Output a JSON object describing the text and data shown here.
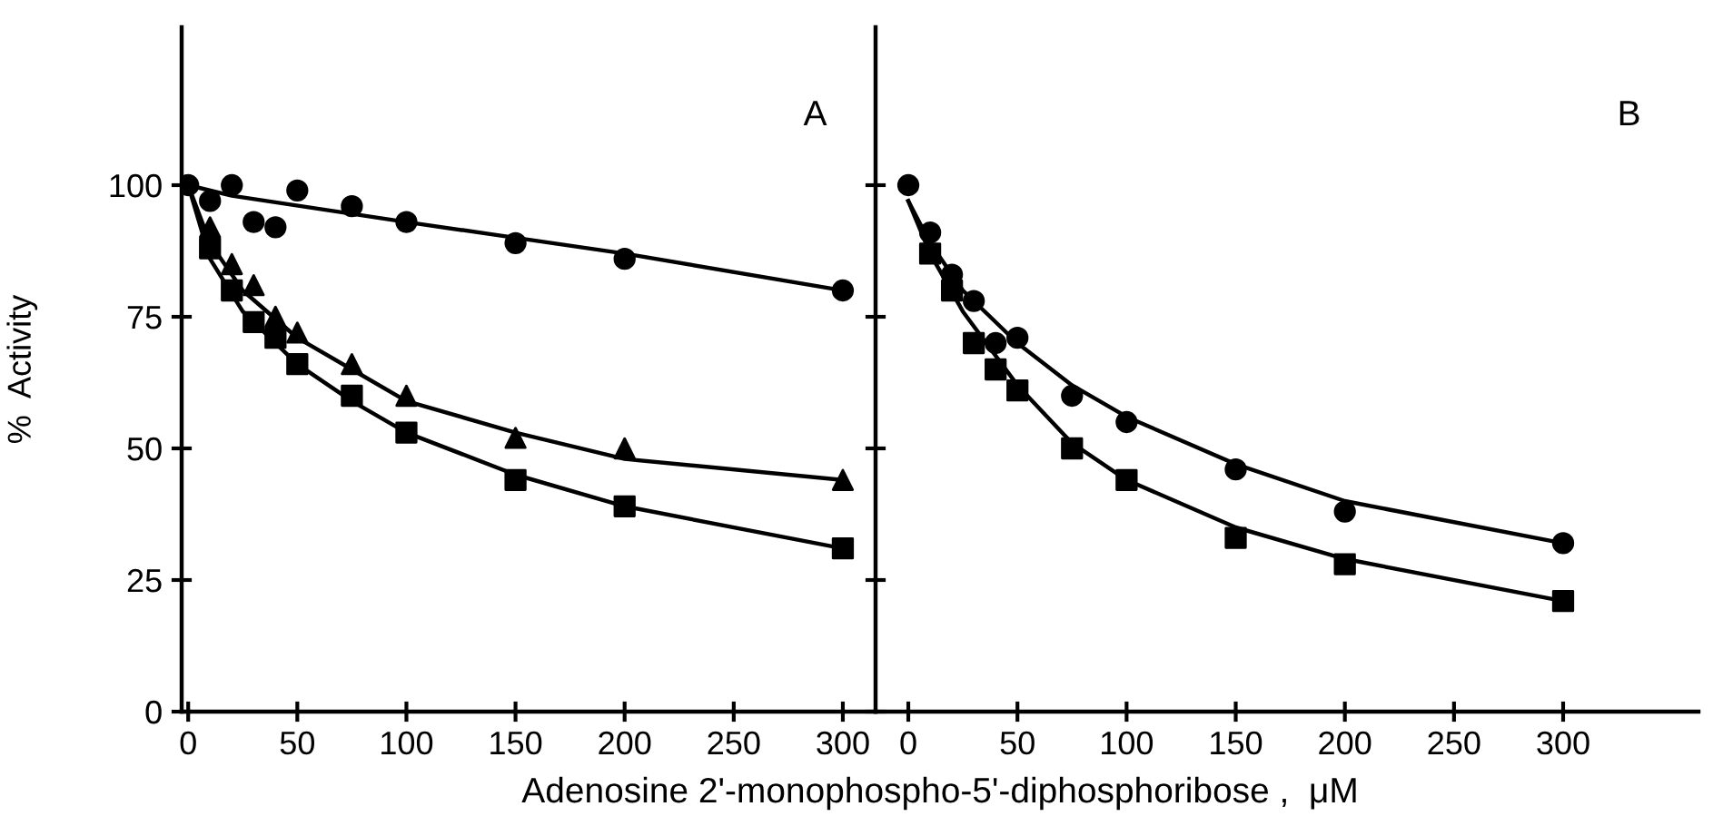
{
  "chart_data": [
    {
      "type": "scatter",
      "xlabel": "Adenosine 2'-monophospho-5'-diphosphoribose ,  μM",
      "ylabel": "%  Activity",
      "annotations": [
        "A"
      ],
      "xlim": [
        -3,
        315
      ],
      "xticks": [
        0,
        50,
        100,
        150,
        200,
        250,
        300
      ],
      "ylim": [
        0,
        130
      ],
      "yticks": [
        0,
        25,
        50,
        75,
        100
      ],
      "grid": false,
      "legend": false,
      "series": [
        {
          "marker": "circle",
          "color": "#000000",
          "x": [
            0,
            10,
            20,
            30,
            40,
            50,
            75,
            100,
            150,
            200,
            300
          ],
          "values": [
            100,
            97,
            100,
            93,
            92,
            99,
            96,
            93,
            89,
            86,
            80
          ]
        },
        {
          "marker": "triangle",
          "color": "#000000",
          "x": [
            10,
            20,
            30,
            40,
            50,
            75,
            100,
            150,
            200,
            300
          ],
          "values": [
            92,
            85,
            81,
            75,
            72,
            66,
            60,
            52,
            50,
            44
          ]
        },
        {
          "marker": "square",
          "color": "#000000",
          "x": [
            10,
            20,
            30,
            40,
            50,
            75,
            100,
            150,
            200,
            300
          ],
          "values": [
            88,
            80,
            74,
            71,
            66,
            60,
            53,
            44,
            39,
            31
          ]
        },
        {
          "type": "line",
          "marker": "none",
          "line_style": "solid",
          "color": "#000000",
          "x": [
            0,
            20,
            100,
            200,
            300
          ],
          "values": [
            100,
            98,
            93,
            87,
            80
          ]
        },
        {
          "type": "line",
          "marker": "none",
          "line_style": "solid",
          "color": "#000000",
          "x": [
            0,
            10,
            25,
            50,
            75,
            100,
            150,
            200,
            300
          ],
          "values": [
            100,
            89,
            80,
            71,
            65,
            59,
            53,
            48,
            44
          ]
        },
        {
          "type": "line",
          "marker": "none",
          "line_style": "solid",
          "color": "#000000",
          "x": [
            0,
            10,
            25,
            50,
            75,
            100,
            150,
            200,
            300
          ],
          "values": [
            100,
            86,
            76,
            66,
            59,
            53,
            45,
            39,
            31
          ]
        }
      ]
    },
    {
      "type": "scatter",
      "annotations": [
        "B"
      ],
      "xlim": [
        -15,
        362
      ],
      "xticks": [
        0,
        50,
        100,
        150,
        200,
        250,
        300
      ],
      "ylim": [
        0,
        130
      ],
      "yticks": [
        0,
        25,
        50,
        75,
        100
      ],
      "tick_labels": "x",
      "grid": false,
      "legend": false,
      "series": [
        {
          "marker": "circle",
          "color": "#000000",
          "x": [
            0,
            10,
            20,
            30,
            40,
            50,
            75,
            100,
            150,
            200,
            300
          ],
          "values": [
            100,
            91,
            83,
            78,
            70,
            71,
            60,
            55,
            46,
            38,
            32
          ]
        },
        {
          "marker": "square",
          "color": "#000000",
          "x": [
            10,
            20,
            30,
            40,
            50,
            75,
            100,
            150,
            200,
            300
          ],
          "values": [
            87,
            80,
            70,
            65,
            61,
            50,
            44,
            33,
            28,
            21
          ]
        },
        {
          "type": "line",
          "marker": "none",
          "line_style": "solid",
          "color": "#000000",
          "x": [
            0,
            10,
            25,
            50,
            75,
            100,
            150,
            200,
            300
          ],
          "values": [
            97,
            89,
            80,
            70,
            62,
            56,
            47,
            40,
            32
          ]
        },
        {
          "type": "line",
          "marker": "none",
          "line_style": "solid",
          "color": "#000000",
          "x": [
            0,
            10,
            25,
            50,
            75,
            100,
            150,
            200,
            300
          ],
          "values": [
            97,
            87,
            76,
            62,
            51,
            44,
            35,
            29,
            21
          ]
        }
      ]
    }
  ]
}
